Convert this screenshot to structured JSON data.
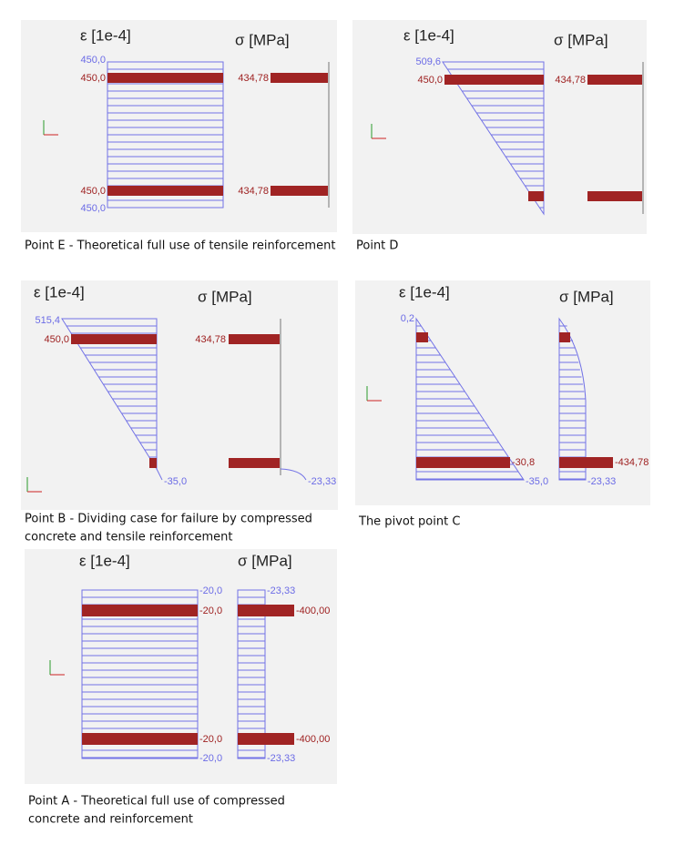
{
  "panels": [
    {
      "strain_header": "ε  [1e-4]",
      "stress_header": "σ  [MPa]",
      "labels": [
        "450,0",
        "450,0",
        "434,78",
        "450,0",
        "434,78",
        "450,0"
      ],
      "caption_lines": [
        "Point E - Theoretical full use of tensile reinforcement"
      ]
    },
    {
      "strain_header": "ε  [1e-4]",
      "stress_header": "σ  [MPa]",
      "labels": [
        "509,6",
        "450,0",
        "434,78"
      ],
      "caption_lines": [
        "Point D"
      ]
    },
    {
      "strain_header": "ε  [1e-4]",
      "stress_header": "σ  [MPa]",
      "labels": [
        "515,4",
        "450,0",
        "434,78",
        "-35,0",
        "-23,33"
      ],
      "caption_lines": [
        "Point B - Dividing case for failure by compressed",
        "concrete and tensile reinforcement"
      ]
    },
    {
      "strain_header": "ε  [1e-4]",
      "stress_header": "σ  [MPa]",
      "labels": [
        "0,2",
        "-30,8",
        "-35,0",
        "-434,78",
        "-23,33"
      ],
      "caption_lines": [
        "The pivot point C"
      ]
    },
    {
      "strain_header": "ε  [1e-4]",
      "stress_header": "σ  [MPa]",
      "labels": [
        "-20,0",
        "-20,0",
        "-20,0",
        "-20,0",
        "-23,33",
        "-400,00",
        "-400,00",
        "-23,33"
      ],
      "caption_lines": [
        "Point A - Theoretical full use of compressed",
        "concrete and reinforcement"
      ]
    }
  ]
}
